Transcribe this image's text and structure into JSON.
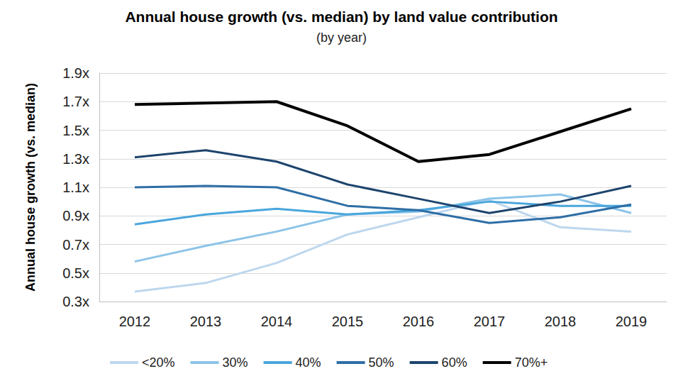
{
  "chart_data": {
    "type": "line",
    "title": "Annual house growth (vs. median) by land value contribution",
    "subtitle": "(by year)",
    "y_label": "Annual house growth (vs. median)",
    "categories": [
      "2012",
      "2013",
      "2014",
      "2015",
      "2016",
      "2017",
      "2018",
      "2019"
    ],
    "series": [
      {
        "name": "<20%",
        "color": "#bdd7ee",
        "values": [
          0.37,
          0.43,
          0.57,
          0.77,
          0.89,
          1.01,
          0.82,
          0.79
        ]
      },
      {
        "name": "30%",
        "color": "#8cc4e8",
        "values": [
          0.58,
          0.69,
          0.79,
          0.91,
          0.93,
          1.02,
          1.05,
          0.92
        ]
      },
      {
        "name": "40%",
        "color": "#4aa6dc",
        "values": [
          0.84,
          0.91,
          0.95,
          0.91,
          0.94,
          1.0,
          0.97,
          0.97
        ]
      },
      {
        "name": "50%",
        "color": "#2e6ea6",
        "values": [
          1.1,
          1.11,
          1.1,
          0.97,
          0.94,
          0.85,
          0.89,
          0.98
        ]
      },
      {
        "name": "60%",
        "color": "#1d446d",
        "values": [
          1.31,
          1.36,
          1.28,
          1.12,
          1.02,
          0.92,
          1.0,
          1.11
        ]
      },
      {
        "name": "70%+",
        "color": "#000000",
        "values": [
          1.68,
          1.69,
          1.7,
          1.53,
          1.28,
          1.33,
          1.49,
          1.65
        ]
      }
    ],
    "ylim": [
      0.3,
      1.9
    ],
    "yticks": [
      {
        "value": 0.3,
        "label": "0.3x"
      },
      {
        "value": 0.5,
        "label": "0.5x"
      },
      {
        "value": 0.7,
        "label": "0.7x"
      },
      {
        "value": 0.9,
        "label": "0.9x"
      },
      {
        "value": 1.1,
        "label": "1.1x"
      },
      {
        "value": 1.3,
        "label": "1.3x"
      },
      {
        "value": 1.5,
        "label": "1.5x"
      },
      {
        "value": 1.7,
        "label": "1.7x"
      },
      {
        "value": 1.9,
        "label": "1.9x"
      }
    ],
    "grid": true,
    "legend": "bottom"
  }
}
